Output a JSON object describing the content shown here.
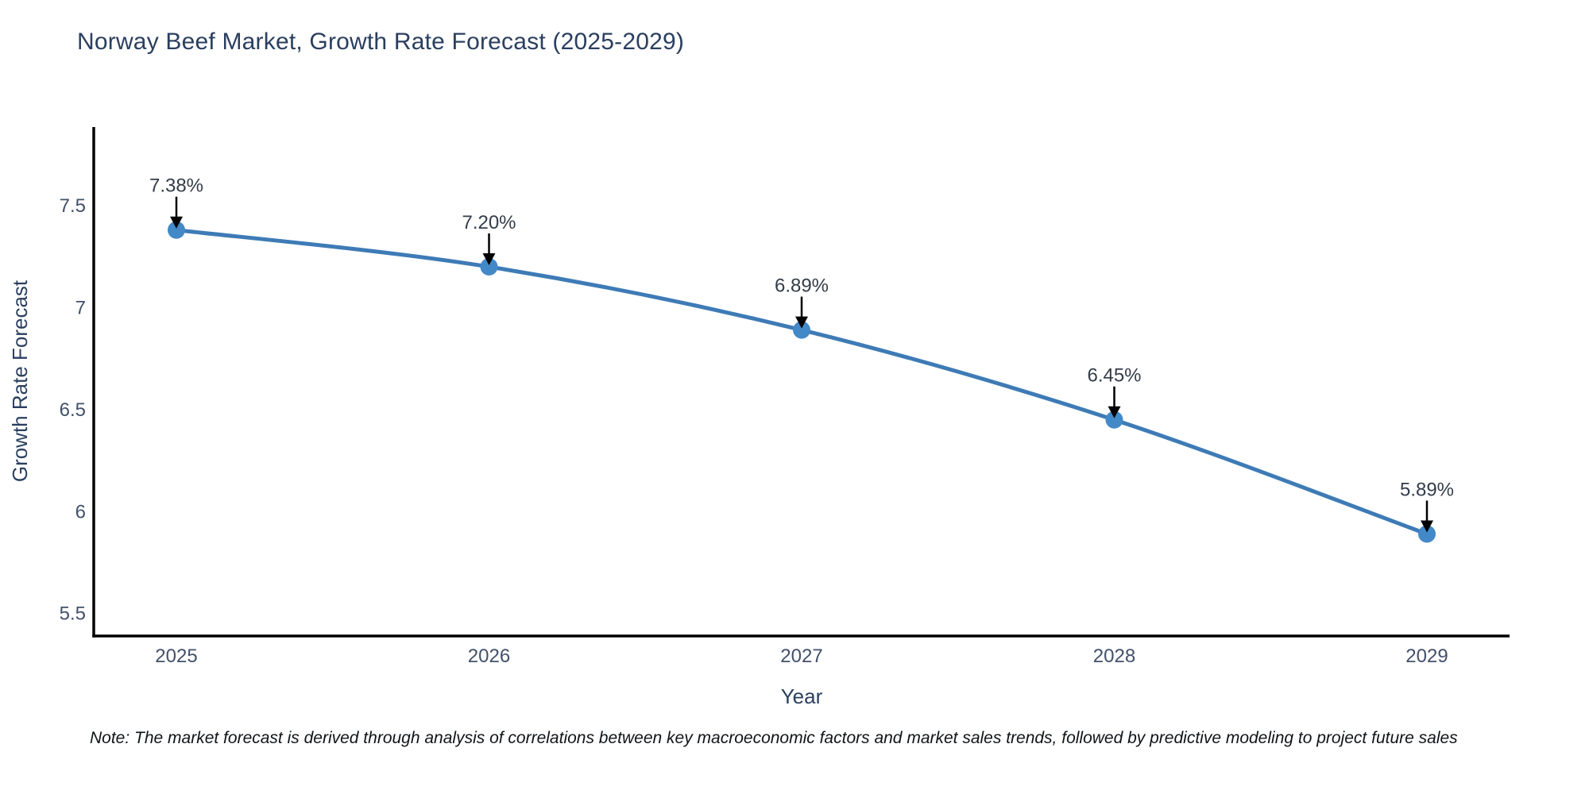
{
  "header": {
    "title": "Norway Beef Market, Growth Rate Forecast (2025-2029)"
  },
  "footnote": "Note: The market forecast is derived through analysis of correlations between key macroeconomic factors and market sales trends, followed by predictive modeling to project future sales",
  "chart_data": {
    "type": "line",
    "title": "Norway Beef Market, Growth Rate Forecast (2025-2029)",
    "x": [
      2025,
      2026,
      2027,
      2028,
      2029
    ],
    "x_tick_labels": [
      "2025",
      "2026",
      "2027",
      "2028",
      "2029"
    ],
    "series": [
      {
        "name": "Growth Rate Forecast",
        "values": [
          7.38,
          7.2,
          6.89,
          6.45,
          5.89
        ]
      }
    ],
    "point_labels": [
      "7.38%",
      "7.20%",
      "6.89%",
      "6.45%",
      "5.89%"
    ],
    "xlabel": "Year",
    "ylabel": "Growth Rate Forecast",
    "yticks": [
      5.5,
      6,
      6.5,
      7,
      7.5
    ],
    "ytick_labels": [
      "5.5",
      "6",
      "6.5",
      "7",
      "7.5"
    ],
    "ylim": [
      5.39,
      7.885
    ],
    "grid": false,
    "legend": "none",
    "line_color": "#3e7bb6",
    "marker_color": "#4389c8",
    "arrow_color": "#000000",
    "axis_line_color": "#000000",
    "title_color": "#2a3f5f"
  }
}
